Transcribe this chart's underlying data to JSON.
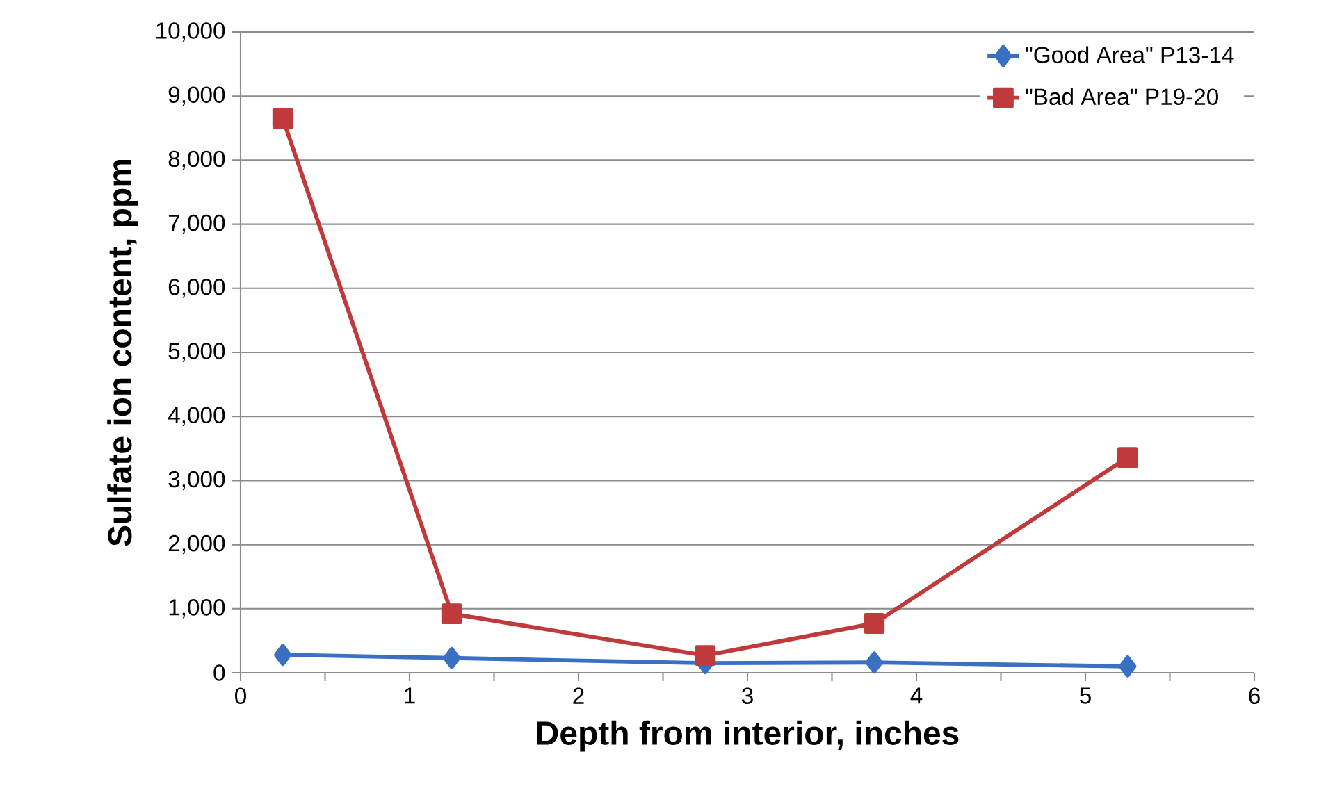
{
  "chart_data": {
    "type": "line",
    "xlabel": "Depth from interior, inches",
    "ylabel": "Sulfate ion content, ppm",
    "x": [
      0.25,
      1.25,
      2.75,
      3.75,
      5.25
    ],
    "series": [
      {
        "name": "\"Good Area\" P13-14",
        "color": "#3a70c0",
        "marker": "diamond",
        "values": [
          280,
          230,
          150,
          160,
          100
        ]
      },
      {
        "name": "\"Bad Area\" P19-20",
        "color": "#c0393b",
        "marker": "square",
        "values": [
          8650,
          920,
          270,
          770,
          3360
        ]
      }
    ],
    "xlim": [
      0,
      6
    ],
    "ylim": [
      0,
      10000
    ],
    "xticks": [
      0,
      {
        "value": 0.5,
        "label": null
      },
      1,
      {
        "value": 1.5,
        "label": null
      },
      2,
      {
        "value": 2.5,
        "label": null
      },
      3,
      {
        "value": 3.5,
        "label": null
      },
      4,
      {
        "value": 4.5,
        "label": null
      },
      5,
      {
        "value": 5.5,
        "label": null
      },
      6
    ],
    "yticks": [
      0,
      {
        "value": 1000,
        "label": "1,000"
      },
      {
        "value": 2000,
        "label": "2,000"
      },
      {
        "value": 3000,
        "label": "3,000"
      },
      {
        "value": 4000,
        "label": "4,000"
      },
      {
        "value": 5000,
        "label": "5,000"
      },
      {
        "value": 6000,
        "label": "6,000"
      },
      {
        "value": 7000,
        "label": "7,000"
      },
      {
        "value": 8000,
        "label": "8,000"
      },
      {
        "value": 9000,
        "label": "9,000"
      },
      {
        "value": 10000,
        "label": "10,000"
      }
    ],
    "grid": "y",
    "legend": "top right",
    "line_style": "solid"
  }
}
